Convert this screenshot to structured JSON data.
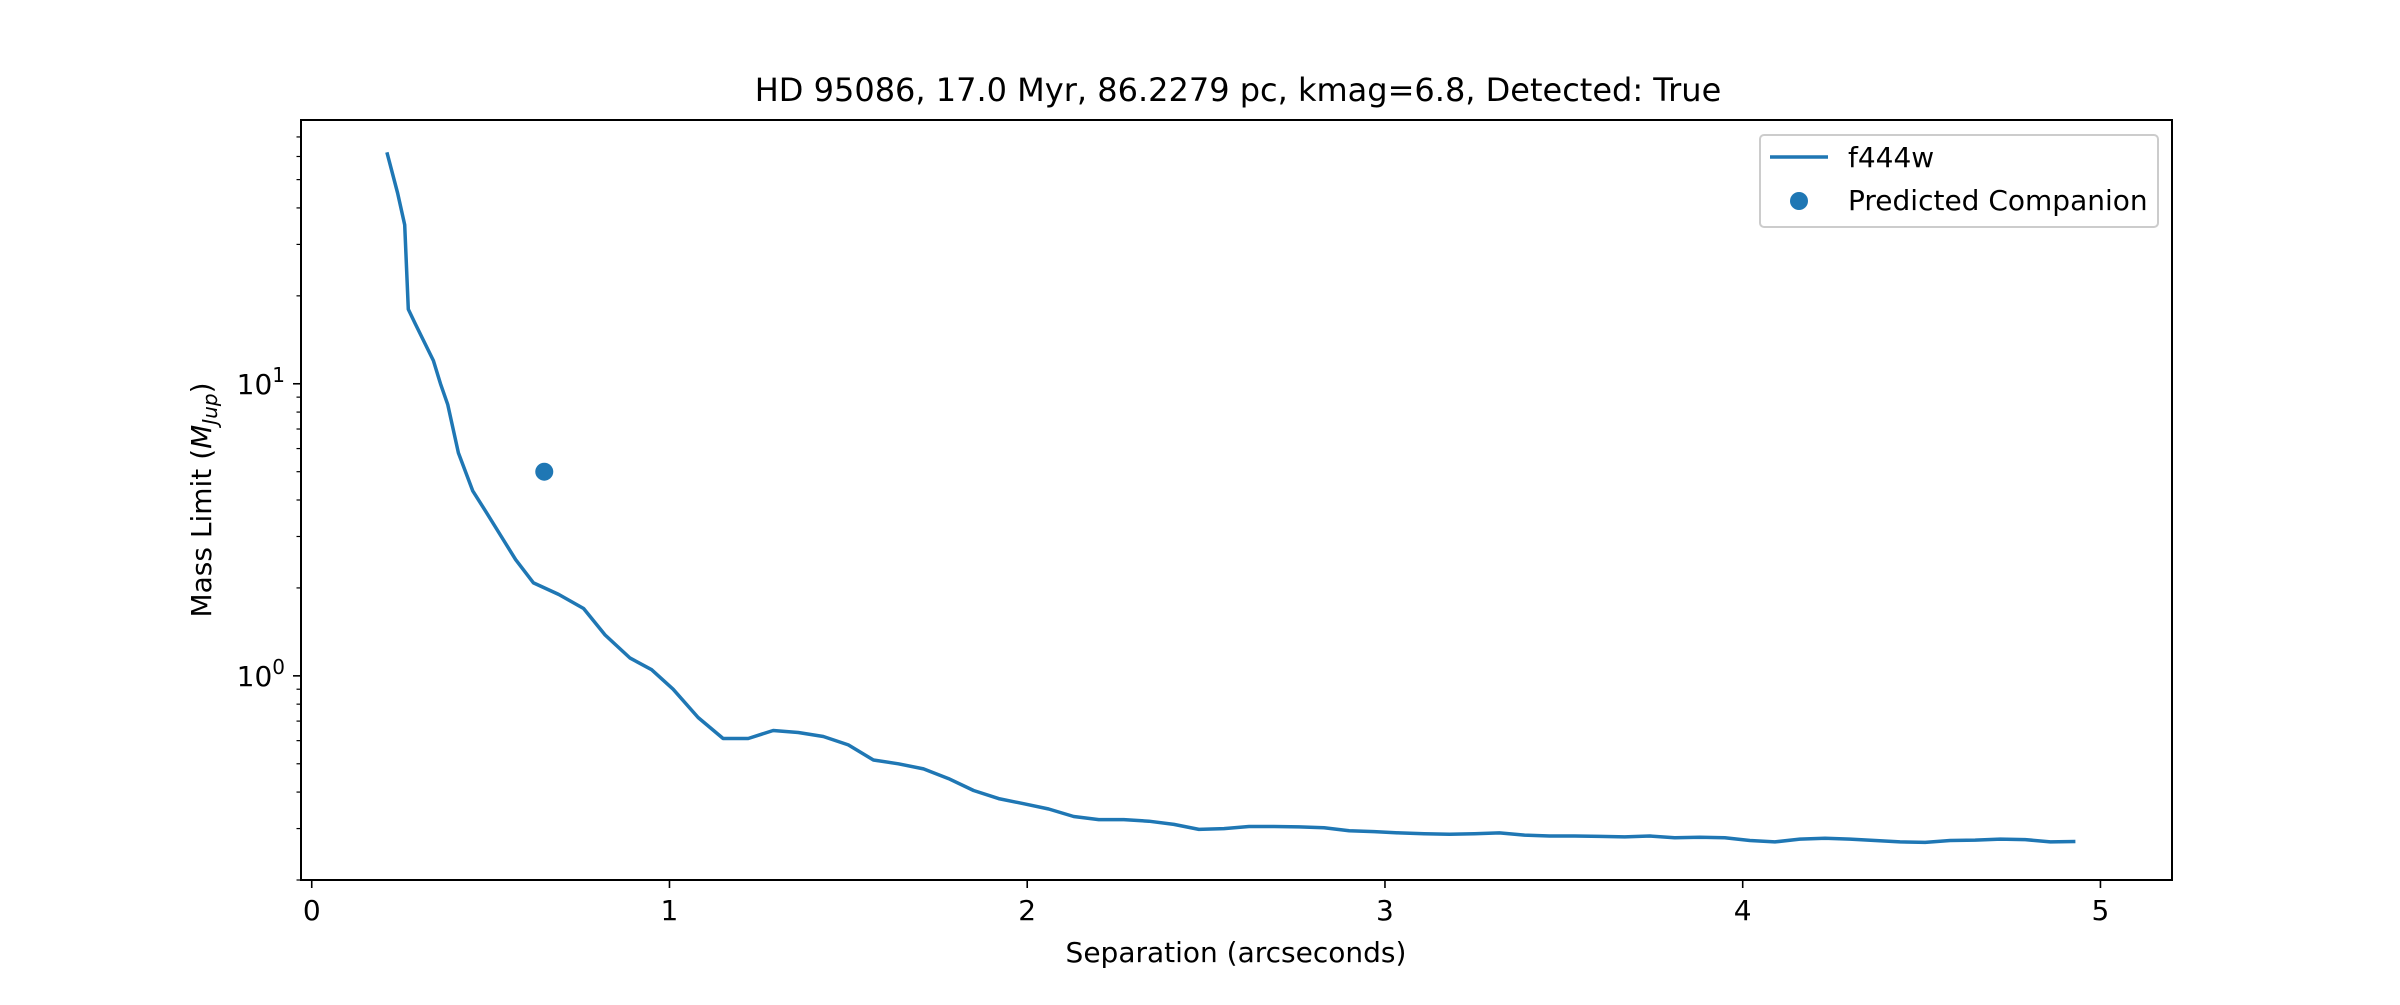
{
  "chart_data": {
    "type": "line",
    "title": "HD 95086, 17.0 Myr, 86.2279 pc, kmag=6.8, Detected: True",
    "xlabel": "Separation (arcseconds)",
    "ylabel": {
      "text": "Mass Limit (",
      "math_symbol": "M",
      "math_subscript": "Jup",
      "suffix": ")"
    },
    "xlim": [
      -0.03,
      5.2
    ],
    "ylim": [
      0.2,
      80
    ],
    "yscale": "log",
    "xticks": [
      {
        "value": 0,
        "label": "0"
      },
      {
        "value": 1,
        "label": "1"
      },
      {
        "value": 2,
        "label": "2"
      },
      {
        "value": 3,
        "label": "3"
      },
      {
        "value": 4,
        "label": "4"
      },
      {
        "value": 5,
        "label": "5"
      }
    ],
    "yticks_major": [
      {
        "value": 1,
        "base": "10",
        "exp": "0"
      },
      {
        "value": 10,
        "base": "10",
        "exp": "1"
      }
    ],
    "yticks_minor": [
      0.2,
      0.3,
      0.4,
      0.5,
      0.6,
      0.7,
      0.8,
      0.9,
      2,
      3,
      4,
      5,
      6,
      7,
      8,
      9,
      20,
      30,
      40,
      50,
      60,
      70
    ],
    "grid": false,
    "legend_position": "upper right",
    "series": [
      {
        "name": "f444w",
        "kind": "line",
        "color": "#1f77b4",
        "x": [
          0.21,
          0.24,
          0.26,
          0.27,
          0.29,
          0.34,
          0.36,
          0.38,
          0.41,
          0.45,
          0.49,
          0.53,
          0.57,
          0.62,
          0.69,
          0.76,
          0.82,
          0.89,
          0.95,
          1.01,
          1.08,
          1.15,
          1.22,
          1.29,
          1.36,
          1.43,
          1.5,
          1.57,
          1.64,
          1.71,
          1.78,
          1.85,
          1.92,
          1.99,
          2.06,
          2.13,
          2.2,
          2.27,
          2.34,
          2.41,
          2.48,
          2.55,
          2.62,
          2.69,
          2.76,
          2.83,
          2.9,
          2.97,
          3.04,
          3.11,
          3.18,
          3.25,
          3.32,
          3.39,
          3.46,
          3.53,
          3.6,
          3.67,
          3.74,
          3.81,
          3.88,
          3.95,
          4.02,
          4.09,
          4.16,
          4.23,
          4.3,
          4.37,
          4.44,
          4.51,
          4.58,
          4.65,
          4.72,
          4.79,
          4.86,
          4.93
        ],
        "y": [
          62,
          45,
          35,
          18,
          16,
          12,
          10,
          8.5,
          5.8,
          4.3,
          3.6,
          3.0,
          2.5,
          2.08,
          1.9,
          1.7,
          1.38,
          1.15,
          1.05,
          0.9,
          0.72,
          0.61,
          0.61,
          0.65,
          0.64,
          0.62,
          0.58,
          0.515,
          0.5,
          0.48,
          0.445,
          0.405,
          0.38,
          0.365,
          0.35,
          0.33,
          0.322,
          0.322,
          0.318,
          0.31,
          0.298,
          0.3,
          0.305,
          0.305,
          0.304,
          0.302,
          0.295,
          0.293,
          0.29,
          0.288,
          0.287,
          0.288,
          0.29,
          0.285,
          0.283,
          0.283,
          0.282,
          0.281,
          0.283,
          0.279,
          0.28,
          0.279,
          0.273,
          0.27,
          0.276,
          0.278,
          0.276,
          0.273,
          0.27,
          0.269,
          0.273,
          0.274,
          0.276,
          0.275,
          0.27,
          0.271
        ]
      },
      {
        "name": "Predicted Companion",
        "kind": "scatter",
        "color": "#1f77b4",
        "x": [
          0.65
        ],
        "y": [
          5.0
        ]
      }
    ]
  }
}
